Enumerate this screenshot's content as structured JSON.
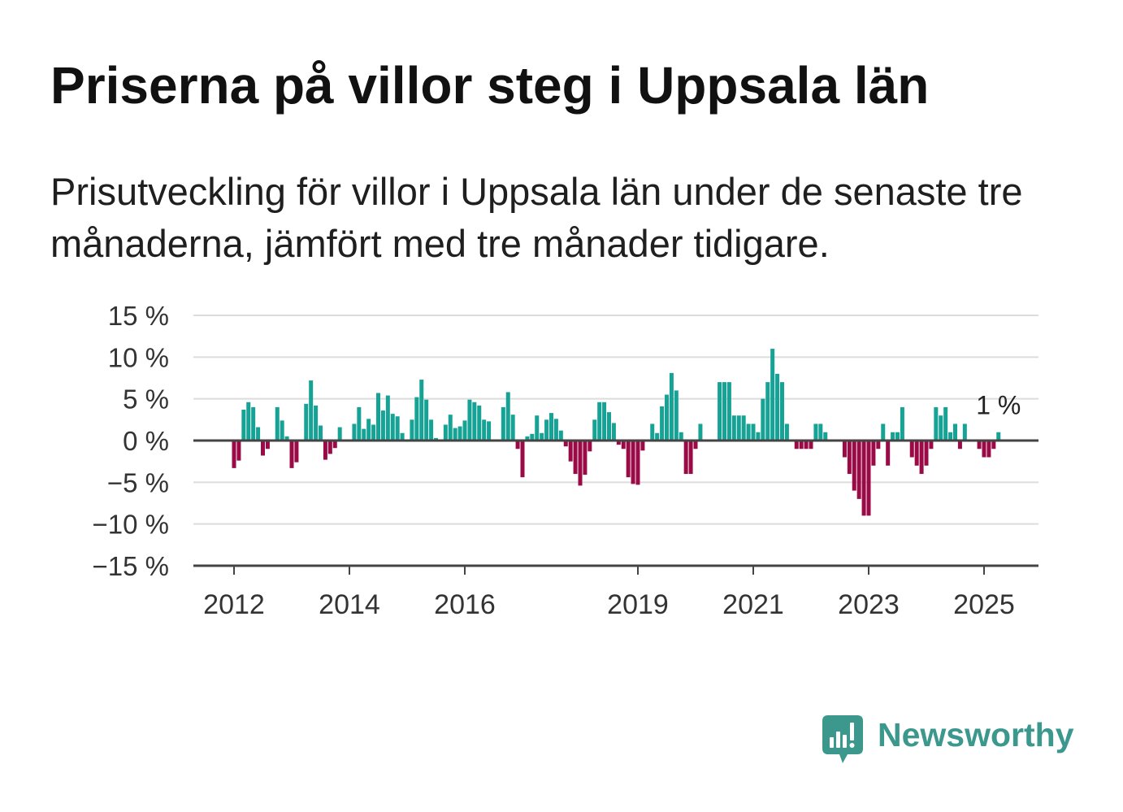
{
  "chart_data": {
    "type": "bar",
    "title": "Priserna på villor steg i Uppsala län",
    "subtitle": "Prisutveckling för villor i Uppsala län under de senaste tre månaderna, jämfört med tre månader tidigare.",
    "x": [
      "2012-01",
      "2012-02",
      "2012-03",
      "2012-04",
      "2012-05",
      "2012-06",
      "2012-07",
      "2012-08",
      "2012-09",
      "2012-10",
      "2012-11",
      "2012-12",
      "2013-01",
      "2013-02",
      "2013-03",
      "2013-04",
      "2013-05",
      "2013-06",
      "2013-07",
      "2013-08",
      "2013-09",
      "2013-10",
      "2013-11",
      "2013-12",
      "2014-01",
      "2014-02",
      "2014-03",
      "2014-04",
      "2014-05",
      "2014-06",
      "2014-07",
      "2014-08",
      "2014-09",
      "2014-10",
      "2014-11",
      "2014-12",
      "2015-01",
      "2015-02",
      "2015-03",
      "2015-04",
      "2015-05",
      "2015-06",
      "2015-07",
      "2015-08",
      "2015-09",
      "2015-10",
      "2015-11",
      "2015-12",
      "2016-01",
      "2016-02",
      "2016-03",
      "2016-04",
      "2016-05",
      "2016-06",
      "2016-07",
      "2016-08",
      "2016-09",
      "2016-10",
      "2016-11",
      "2016-12",
      "2017-01",
      "2017-02",
      "2017-03",
      "2017-04",
      "2017-05",
      "2017-06",
      "2017-07",
      "2017-08",
      "2017-09",
      "2017-10",
      "2017-11",
      "2017-12",
      "2018-01",
      "2018-02",
      "2018-03",
      "2018-04",
      "2018-05",
      "2018-06",
      "2018-07",
      "2018-08",
      "2018-09",
      "2018-10",
      "2018-11",
      "2018-12",
      "2019-01",
      "2019-02",
      "2019-03",
      "2019-04",
      "2019-05",
      "2019-06",
      "2019-07",
      "2019-08",
      "2019-09",
      "2019-10",
      "2019-11",
      "2019-12",
      "2020-01",
      "2020-02",
      "2020-03",
      "2020-04",
      "2020-05",
      "2020-06",
      "2020-07",
      "2020-08",
      "2020-09",
      "2020-10",
      "2020-11",
      "2020-12",
      "2021-01",
      "2021-02",
      "2021-03",
      "2021-04",
      "2021-05",
      "2021-06",
      "2021-07",
      "2021-08",
      "2021-09",
      "2021-10",
      "2021-11",
      "2021-12",
      "2022-01",
      "2022-02",
      "2022-03",
      "2022-04",
      "2022-05",
      "2022-06",
      "2022-07",
      "2022-08",
      "2022-09",
      "2022-10",
      "2022-11",
      "2022-12",
      "2023-01",
      "2023-02",
      "2023-03",
      "2023-04",
      "2023-05",
      "2023-06",
      "2023-07",
      "2023-08",
      "2023-09",
      "2023-10",
      "2023-11",
      "2023-12",
      "2024-01",
      "2024-02",
      "2024-03",
      "2024-04",
      "2024-05",
      "2024-06",
      "2024-07",
      "2024-08",
      "2024-09",
      "2024-10",
      "2024-11",
      "2024-12",
      "2025-01",
      "2025-02",
      "2025-03",
      "2025-04"
    ],
    "values": [
      -3.3,
      -2.4,
      3.7,
      4.6,
      4.0,
      1.6,
      -1.8,
      -1.0,
      0,
      4.0,
      2.4,
      0.5,
      -3.3,
      -2.6,
      0,
      4.4,
      7.2,
      4.2,
      1.8,
      -2.3,
      -1.6,
      -0.9,
      1.6,
      0,
      0,
      2.0,
      4.0,
      1.4,
      2.6,
      1.9,
      5.7,
      3.6,
      5.4,
      3.2,
      2.9,
      0.9,
      0,
      2.5,
      5.2,
      7.3,
      4.9,
      2.5,
      0.3,
      0,
      1.9,
      3.1,
      1.5,
      1.7,
      2.4,
      4.9,
      4.6,
      4.2,
      2.5,
      2.3,
      0,
      0,
      4.0,
      5.8,
      3.1,
      -1.0,
      -4.4,
      0.5,
      0.8,
      3.0,
      0.9,
      2.5,
      3.3,
      2.6,
      1.2,
      -0.7,
      -2.5,
      -4.0,
      -5.4,
      -4.1,
      -1.3,
      2.5,
      4.6,
      4.6,
      3.4,
      2.1,
      -0.5,
      -1.0,
      -4.4,
      -5.2,
      -5.3,
      -1.2,
      0,
      2.0,
      0.9,
      4.1,
      5.5,
      8.1,
      6.0,
      1.0,
      -4.0,
      -4.0,
      -1,
      2,
      0,
      0,
      0,
      7,
      7,
      7,
      3,
      3,
      3,
      2,
      2,
      1,
      5,
      7,
      11,
      8,
      7,
      2,
      0,
      -1,
      -1,
      -1,
      -1,
      2,
      2,
      1,
      0,
      0,
      0,
      -2,
      -4,
      -6,
      -7,
      -9,
      -9,
      -3,
      -1,
      2,
      -3,
      1,
      1,
      4,
      0,
      -2,
      -3,
      -4,
      -3,
      -1,
      4,
      3,
      4,
      1,
      2,
      -1,
      2,
      0,
      0,
      -1,
      -2,
      -2,
      -1,
      1
    ],
    "ylim": [
      -15,
      15
    ],
    "yticks": [
      15,
      10,
      5,
      0,
      -5,
      -10,
      -15
    ],
    "ytick_labels": [
      "15 %",
      "10 %",
      "5 %",
      "0 %",
      "−5 %",
      "−10 %",
      "−15 %"
    ],
    "xticks": [
      "2012",
      "2014",
      "2016",
      "2019",
      "2021",
      "2023",
      "2025"
    ],
    "grid": true,
    "annotation": {
      "label": "1 %"
    },
    "colors": {
      "positive": "#16a396",
      "negative": "#9a0a46"
    }
  },
  "brand": {
    "name": "Newsworthy",
    "icon": "newsworthy-logo-icon",
    "color": "#3c988c"
  }
}
